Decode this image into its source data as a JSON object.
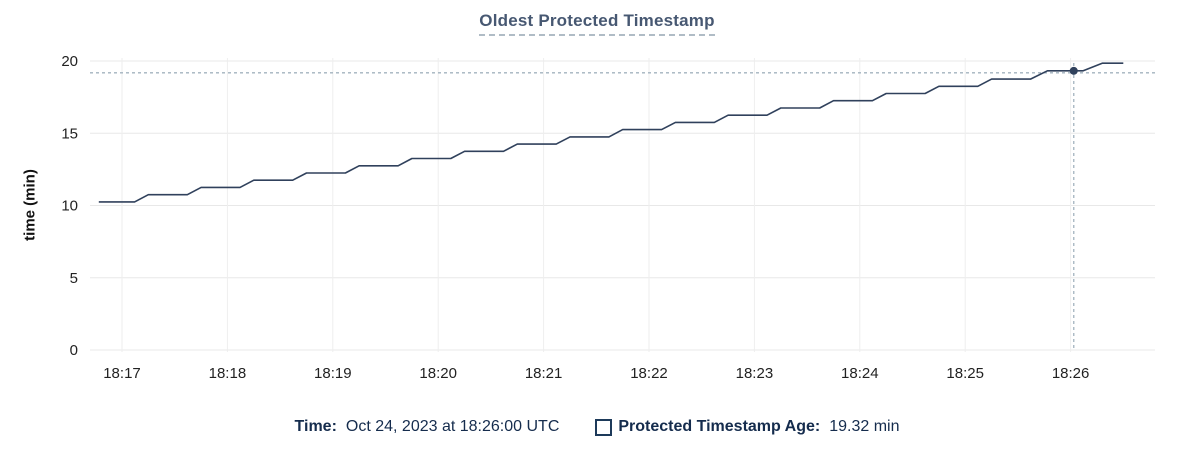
{
  "chart_data": {
    "type": "line",
    "title": "Oldest Protected Timestamp",
    "ylabel": "time (min)",
    "x_tick_labels": [
      "18:17",
      "18:18",
      "18:19",
      "18:20",
      "18:21",
      "18:22",
      "18:23",
      "18:24",
      "18:25",
      "18:26"
    ],
    "y_ticks": [
      0,
      5,
      10,
      15,
      20
    ],
    "ylim": [
      0,
      20
    ],
    "x_unit_note": "x expressed as minutes after 18:17:00 UTC; visible range approx 18:16:45 to 18:26:45",
    "grid": true,
    "legend_position": "bottom",
    "series": [
      {
        "name": "Protected Timestamp Age",
        "color": "#30415c",
        "points": [
          [
            -0.22,
            10.25
          ],
          [
            0.12,
            10.25
          ],
          [
            0.25,
            10.75
          ],
          [
            0.62,
            10.75
          ],
          [
            0.75,
            11.25
          ],
          [
            1.12,
            11.25
          ],
          [
            1.25,
            11.75
          ],
          [
            1.62,
            11.75
          ],
          [
            1.75,
            12.25
          ],
          [
            2.12,
            12.25
          ],
          [
            2.25,
            12.75
          ],
          [
            2.62,
            12.75
          ],
          [
            2.75,
            13.25
          ],
          [
            3.12,
            13.25
          ],
          [
            3.25,
            13.75
          ],
          [
            3.62,
            13.75
          ],
          [
            3.75,
            14.25
          ],
          [
            4.12,
            14.25
          ],
          [
            4.25,
            14.75
          ],
          [
            4.62,
            14.75
          ],
          [
            4.75,
            15.25
          ],
          [
            5.12,
            15.25
          ],
          [
            5.25,
            15.75
          ],
          [
            5.62,
            15.75
          ],
          [
            5.75,
            16.25
          ],
          [
            6.12,
            16.25
          ],
          [
            6.25,
            16.75
          ],
          [
            6.62,
            16.75
          ],
          [
            6.75,
            17.25
          ],
          [
            7.12,
            17.25
          ],
          [
            7.25,
            17.75
          ],
          [
            7.62,
            17.75
          ],
          [
            7.75,
            18.25
          ],
          [
            8.12,
            18.25
          ],
          [
            8.25,
            18.75
          ],
          [
            8.62,
            18.75
          ],
          [
            8.78,
            19.32
          ],
          [
            9.12,
            19.32
          ],
          [
            9.3,
            19.85
          ],
          [
            9.5,
            19.85
          ]
        ]
      }
    ],
    "hover": {
      "x": 9.03,
      "time": "18:26:00",
      "value": 19.32
    }
  },
  "tooltip": {
    "time_label": "Time:",
    "time_value": "Oct 24, 2023 at 18:26:00 UTC",
    "metric_label": "Protected Timestamp Age:",
    "metric_value": "19.32 min"
  },
  "colors": {
    "title": "#475872",
    "series_line": "#30415c",
    "hover_dot": "#30415c",
    "crosshair": "#a3b3bf",
    "gridline_h": "#e8e8e8",
    "gridline_v": "#eeeeee",
    "tick_text": "#222222",
    "legend_text": "#152c4d"
  }
}
